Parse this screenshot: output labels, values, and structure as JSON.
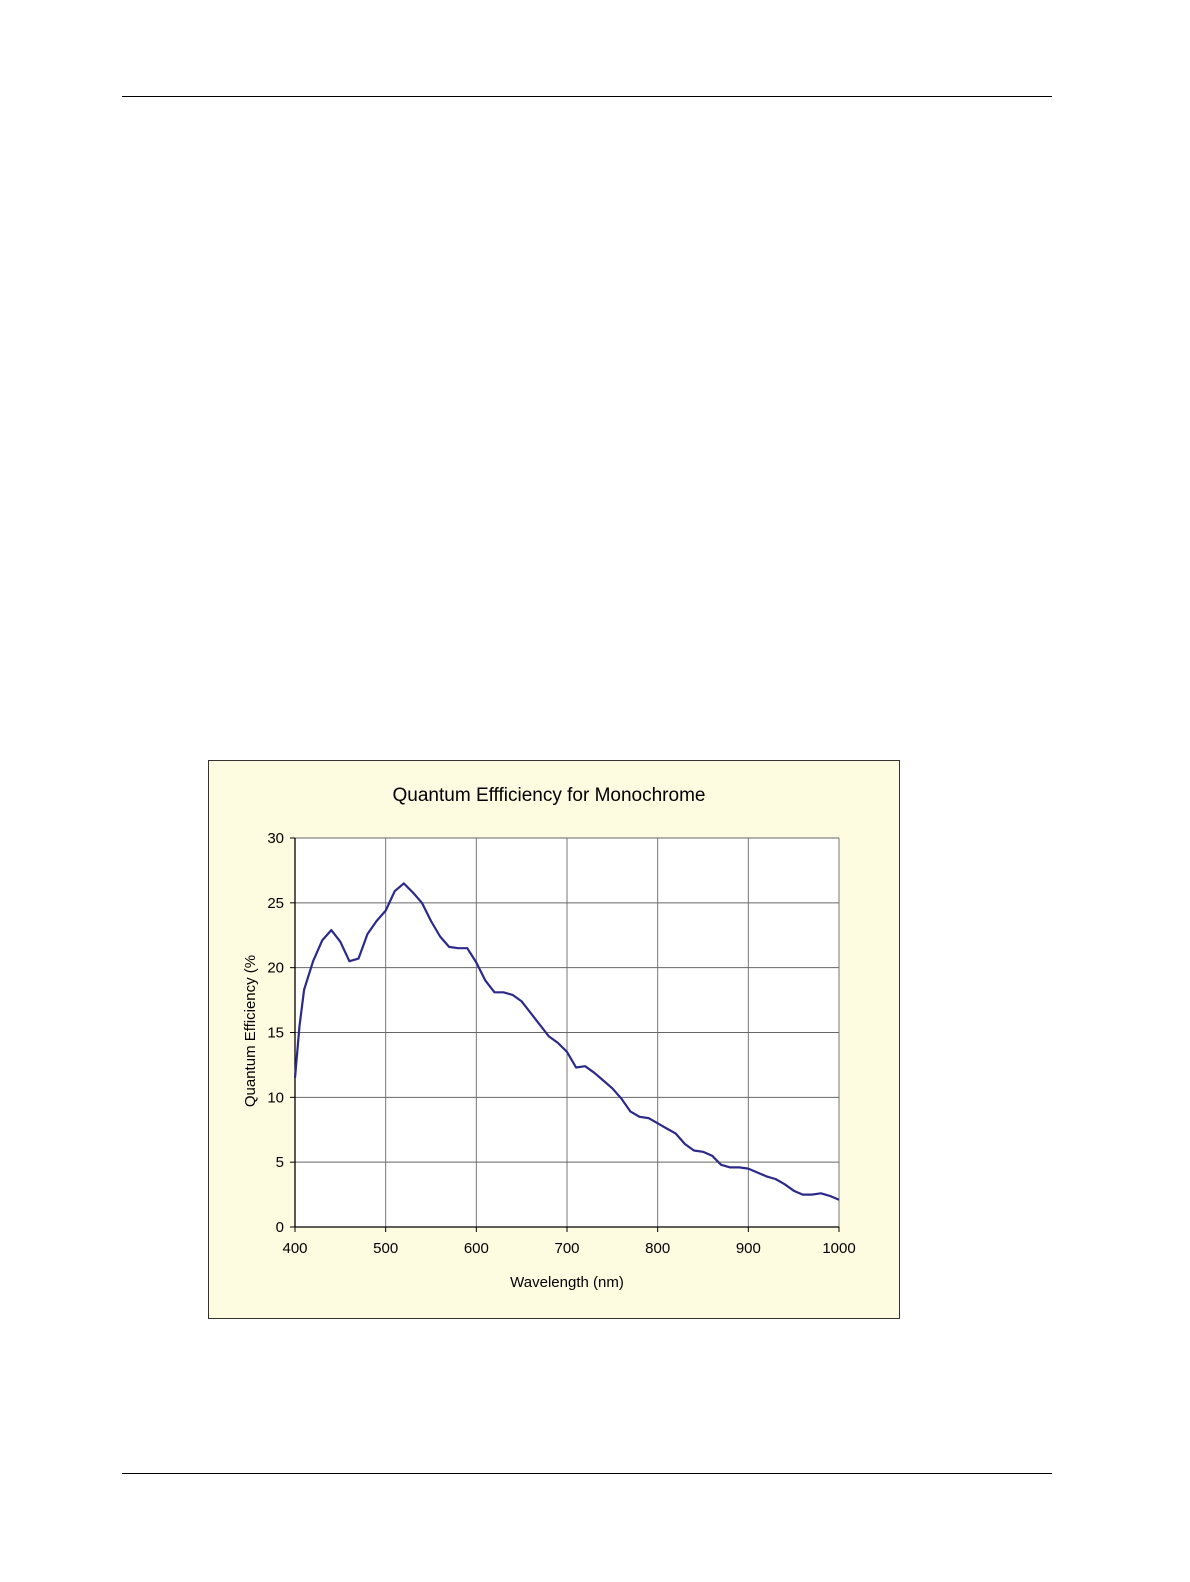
{
  "chart_data": {
    "type": "line",
    "title": "Quantum Effficiency for Monochrome",
    "xlabel": "Wavelength (nm)",
    "ylabel": "Quantum Efficiency (%",
    "xlim": [
      400,
      1000
    ],
    "ylim": [
      0,
      30
    ],
    "xticks": [
      400,
      500,
      600,
      700,
      800,
      900,
      1000
    ],
    "yticks": [
      0,
      5,
      10,
      15,
      20,
      25,
      30
    ],
    "grid": true,
    "line_color": "#2b2a8a",
    "plot_background": "#ffffff",
    "chart_background": "#fdfbe0",
    "series": [
      {
        "x": [
          400,
          405,
          410,
          420,
          430,
          440,
          450,
          460,
          470,
          480,
          490,
          500,
          510,
          520,
          530,
          540,
          550,
          560,
          570,
          580,
          590,
          600,
          610,
          620,
          630,
          640,
          650,
          660,
          670,
          680,
          690,
          700,
          710,
          720,
          730,
          740,
          750,
          760,
          770,
          780,
          790,
          800,
          810,
          820,
          830,
          840,
          850,
          860,
          870,
          880,
          890,
          900,
          910,
          920,
          930,
          940,
          950,
          960,
          970,
          980,
          990,
          1000
        ],
        "y": [
          11.5,
          15.5,
          18.3,
          20.5,
          22.1,
          22.9,
          22.0,
          20.5,
          20.7,
          22.6,
          23.6,
          24.4,
          25.9,
          26.5,
          25.8,
          25.0,
          23.6,
          22.4,
          21.6,
          21.5,
          21.5,
          20.4,
          19.0,
          18.1,
          18.1,
          17.9,
          17.4,
          16.5,
          15.6,
          14.7,
          14.2,
          13.5,
          12.3,
          12.4,
          11.9,
          11.3,
          10.7,
          9.9,
          8.9,
          8.5,
          8.4,
          8.0,
          7.6,
          7.2,
          6.4,
          5.9,
          5.8,
          5.5,
          4.8,
          4.6,
          4.6,
          4.5,
          4.2,
          3.9,
          3.7,
          3.3,
          2.8,
          2.5,
          2.5,
          2.6,
          2.4,
          2.1
        ]
      }
    ]
  }
}
